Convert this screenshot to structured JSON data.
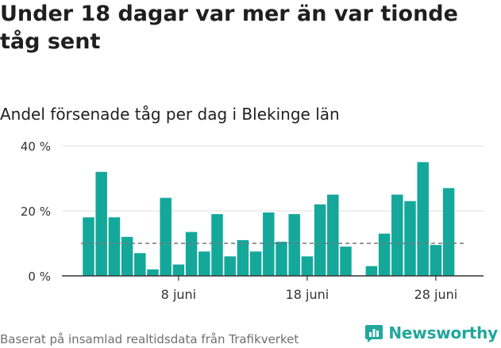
{
  "header": {
    "title": "Under 18 dagar var mer än var tionde tåg sent",
    "subtitle": "Andel försenade tåg per dag i Blekinge län"
  },
  "footer": {
    "source": "Baserat på insamlad realtidsdata från Trafikverket",
    "brand": "Newsworthy"
  },
  "colors": {
    "bar": "#14a89b",
    "grid": "#e2e2e2",
    "axis": "#333333",
    "reference_line": "#777777",
    "brand": "#21a79c"
  },
  "icons": {
    "brand_logo": "bar-chart-icon"
  },
  "chart_data": {
    "type": "bar",
    "title": "Andel försenade tåg per dag i Blekinge län",
    "xlabel": "",
    "ylabel": "",
    "ylim": [
      0,
      40
    ],
    "y_ticks": [
      0,
      20,
      40
    ],
    "y_tick_labels": [
      "0 %",
      "20 %",
      "40 %"
    ],
    "x_ticks": [
      8,
      18,
      28
    ],
    "x_tick_labels": [
      "8 juni",
      "18 juni",
      "28 juni"
    ],
    "categories": [
      1,
      2,
      3,
      4,
      5,
      6,
      7,
      8,
      9,
      10,
      11,
      12,
      13,
      14,
      15,
      16,
      17,
      18,
      19,
      20,
      21,
      22,
      23,
      24,
      25,
      26,
      27,
      28,
      29,
      30
    ],
    "values": [
      18,
      32,
      18,
      12,
      7,
      2,
      24,
      3.5,
      13.5,
      7.5,
      19,
      6,
      11,
      7.5,
      19.5,
      10.5,
      19,
      6,
      22,
      25,
      9,
      null,
      3,
      13,
      25,
      23,
      35,
      9.5,
      27,
      null
    ],
    "reference_line": 10,
    "grid": true,
    "legend": "none"
  }
}
